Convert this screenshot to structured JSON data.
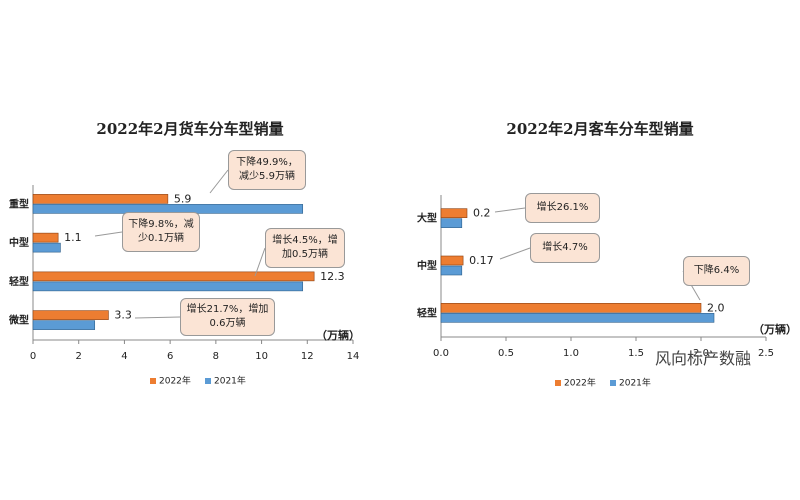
{
  "chart_data": [
    {
      "type": "bar",
      "orientation": "horizontal",
      "title": "2022年2月货车分车型销量",
      "categories": [
        "重型",
        "中型",
        "轻型",
        "微型"
      ],
      "series": [
        {
          "name": "2022年",
          "color": "#ed7d31",
          "values": [
            5.9,
            1.1,
            12.3,
            3.3
          ]
        },
        {
          "name": "2021年",
          "color": "#5b9bd5",
          "values": [
            11.8,
            1.2,
            11.8,
            2.7
          ]
        }
      ],
      "xlim": [
        0,
        14
      ],
      "xticks": [
        0,
        2,
        4,
        6,
        8,
        10,
        12,
        14
      ],
      "xlabel": "（万辆）",
      "annotations": [
        "下降49.9%，减少5.9万辆",
        "下降9.8%，减少0.1万辆",
        "增长4.5%，增加0.5万辆",
        "增长21.7%，增加0.6万辆"
      ]
    },
    {
      "type": "bar",
      "orientation": "horizontal",
      "title": "2022年2月客车分车型销量",
      "categories": [
        "大型",
        "中型",
        "轻型"
      ],
      "series": [
        {
          "name": "2022年",
          "color": "#ed7d31",
          "values": [
            0.2,
            0.17,
            2.0
          ],
          "value_labels": [
            "0.2",
            "0.17",
            "2.0"
          ]
        },
        {
          "name": "2021年",
          "color": "#5b9bd5",
          "values": [
            0.16,
            0.16,
            2.1
          ]
        }
      ],
      "xlim": [
        0,
        2.5
      ],
      "xticks": [
        {
          "value": 0,
          "label": "0.0"
        },
        {
          "value": 0.5,
          "label": "0.5"
        },
        {
          "value": 1,
          "label": "1.0"
        },
        {
          "value": 1.5,
          "label": "1.5"
        },
        {
          "value": 2,
          "label": "2.0"
        },
        {
          "value": 2.5,
          "label": "2.5"
        }
      ],
      "xlabel": "（万辆）",
      "annotations": [
        "增长26.1%",
        "增长4.7%",
        "下降6.4%"
      ],
      "watermark": "风向标产数融"
    }
  ]
}
